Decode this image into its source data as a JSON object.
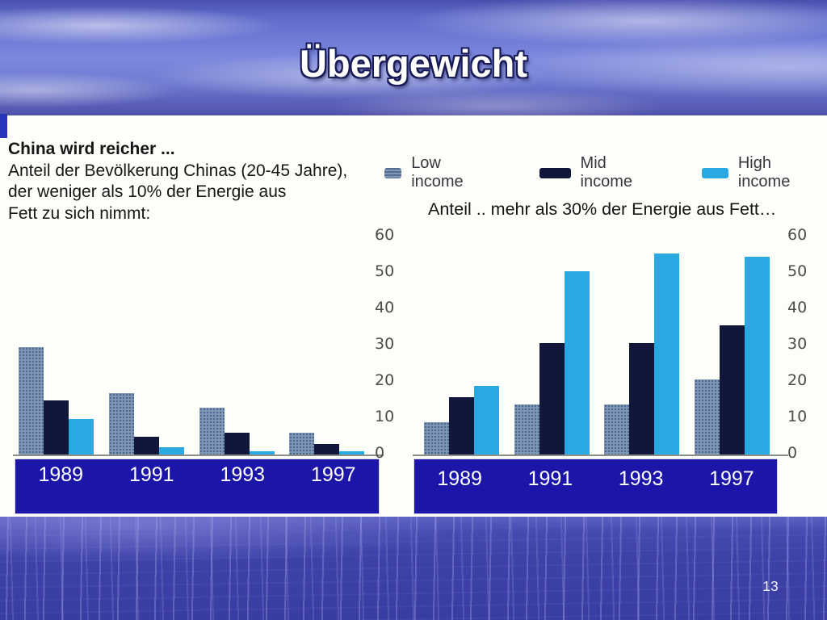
{
  "slide": {
    "title": "Übergewicht",
    "page_number": "13"
  },
  "intro": {
    "heading": "China wird reicher ...",
    "lines": [
      "Anteil der Bevölkerung Chinas (20-45 Jahre),",
      "der weniger als 10% der Energie aus",
      "Fett zu sich nimmt:"
    ]
  },
  "legend": {
    "items": [
      {
        "label": "Low income",
        "color": "#7f97b8"
      },
      {
        "label": "Mid income",
        "color": "#10173a"
      },
      {
        "label": "High income",
        "color": "#29a9e2"
      }
    ]
  },
  "captions": {
    "right_chart": "Anteil .. mehr als 30% der Energie aus Fett…"
  },
  "colors": {
    "band_blue": "#1b16a8",
    "low_income": "#7f97b8",
    "mid_income": "#10173a",
    "high_income": "#29a9e2"
  },
  "chart_data": [
    {
      "type": "bar",
      "title": "Anteil der Bevölkerung Chinas (20-45 Jahre), der weniger als 10% der Energie aus Fett zu sich nimmt",
      "categories": [
        "1989",
        "1991",
        "1993",
        "1997"
      ],
      "series": [
        {
          "name": "Low income",
          "values": [
            30,
            17,
            13,
            6
          ]
        },
        {
          "name": "Mid income",
          "values": [
            15,
            5,
            6,
            3
          ]
        },
        {
          "name": "High income",
          "values": [
            10,
            2,
            1,
            1
          ]
        }
      ],
      "ylabel": "",
      "xlabel": "",
      "ylim": [
        0,
        60
      ],
      "yticks": [
        0,
        10,
        20,
        30,
        40,
        50,
        60
      ],
      "y_axis_side": "right",
      "grid": false,
      "legend_position": "top-shared"
    },
    {
      "type": "bar",
      "title": "Anteil .. mehr als 30% der Energie aus Fett…",
      "categories": [
        "1989",
        "1991",
        "1993",
        "1997"
      ],
      "series": [
        {
          "name": "Low income",
          "values": [
            9,
            14,
            14,
            21
          ]
        },
        {
          "name": "Mid income",
          "values": [
            16,
            31,
            31,
            36
          ]
        },
        {
          "name": "High income",
          "values": [
            19,
            51,
            56,
            55
          ]
        }
      ],
      "ylabel": "",
      "xlabel": "",
      "ylim": [
        0,
        60
      ],
      "yticks": [
        0,
        10,
        20,
        30,
        40,
        50,
        60
      ],
      "y_axis_side": "right",
      "grid": false,
      "legend_position": "top-shared"
    }
  ]
}
